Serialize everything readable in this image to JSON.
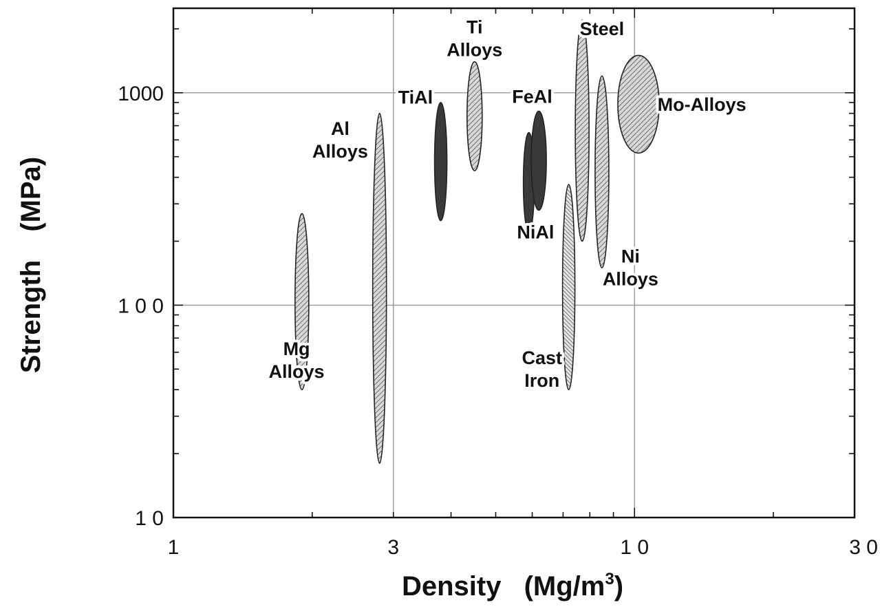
{
  "chart_data": {
    "type": "scatter",
    "title": "",
    "xlabel": "Density (Mg/m3)",
    "xlabel_parts": {
      "main": "Density",
      "unit_prefix": "(Mg/m",
      "unit_sup": "3",
      "unit_suffix": ")"
    },
    "ylabel": "Strength (MPa)",
    "ylabel_parts": {
      "main": "Strength",
      "unit": "(MPa)"
    },
    "x_scale": "log",
    "y_scale": "log",
    "xlim": [
      1,
      30
    ],
    "ylim": [
      10,
      2500
    ],
    "x_ticks": [
      {
        "value": 1,
        "label": "1"
      },
      {
        "value": 3,
        "label": "3"
      },
      {
        "value": 10,
        "label": "1 0"
      },
      {
        "value": 30,
        "label": "3 0"
      }
    ],
    "y_ticks": [
      {
        "value": 10,
        "label": "1 0"
      },
      {
        "value": 100,
        "label": "1 0 0"
      },
      {
        "value": 1000,
        "label": "1000"
      }
    ],
    "grid_x": [
      3,
      10
    ],
    "grid_y": [
      100,
      1000
    ],
    "series": [
      {
        "name": "Mg Alloys",
        "density": [
          1.9,
          1.9
        ],
        "strength": [
          40,
          270
        ],
        "fill": "hatch-light",
        "label_lines": [
          "Mg",
          "Alloys"
        ],
        "label_at": [
          1.85,
          55
        ]
      },
      {
        "name": "Al Alloys",
        "density": [
          2.8,
          2.8
        ],
        "strength": [
          18,
          800
        ],
        "fill": "hatch-light",
        "label_lines": [
          "Al",
          "Alloys"
        ],
        "label_at": [
          2.3,
          600
        ]
      },
      {
        "name": "TiAl",
        "density": [
          3.8,
          3.8
        ],
        "strength": [
          250,
          900
        ],
        "fill": "dark",
        "label_lines": [
          "TiAl"
        ],
        "label_at": [
          3.35,
          950
        ]
      },
      {
        "name": "Ti Alloys",
        "density": [
          4.5,
          4.5
        ],
        "strength": [
          430,
          1400
        ],
        "fill": "hatch-light",
        "label_lines": [
          "Ti",
          "Alloys"
        ],
        "label_at": [
          4.5,
          1800
        ]
      },
      {
        "name": "NiAl",
        "density": [
          5.9,
          5.9
        ],
        "strength": [
          220,
          650
        ],
        "fill": "dark",
        "label_lines": [
          "NiAl"
        ],
        "label_at": [
          6.1,
          220
        ]
      },
      {
        "name": "FeAl",
        "density": [
          6.2,
          6.2
        ],
        "strength": [
          280,
          820
        ],
        "fill": "dark",
        "label_lines": [
          "FeAl"
        ],
        "label_at": [
          6.0,
          960
        ]
      },
      {
        "name": "Cast Iron",
        "density": [
          7.2,
          7.2
        ],
        "strength": [
          40,
          370
        ],
        "fill": "hatch-dense",
        "label_lines": [
          "Cast",
          "Iron"
        ],
        "label_at": [
          6.3,
          50
        ]
      },
      {
        "name": "Steel",
        "density": [
          7.7,
          7.7
        ],
        "strength": [
          200,
          2200
        ],
        "fill": "hatch-light",
        "label_lines": [
          "Steel"
        ],
        "label_at": [
          8.5,
          2000
        ]
      },
      {
        "name": "Ni Alloys",
        "density": [
          8.5,
          8.5
        ],
        "strength": [
          150,
          1200
        ],
        "fill": "hatch-light",
        "label_lines": [
          "Ni",
          "Alloys"
        ],
        "label_at": [
          9.8,
          150
        ]
      },
      {
        "name": "Mo-Alloys",
        "density": [
          10.2,
          10.2
        ],
        "strength": [
          520,
          1500
        ],
        "fill": "hatch-light",
        "label_lines": [
          "Mo-Alloys"
        ],
        "label_at": [
          14,
          880
        ]
      }
    ],
    "legend": "none",
    "grid": true
  }
}
